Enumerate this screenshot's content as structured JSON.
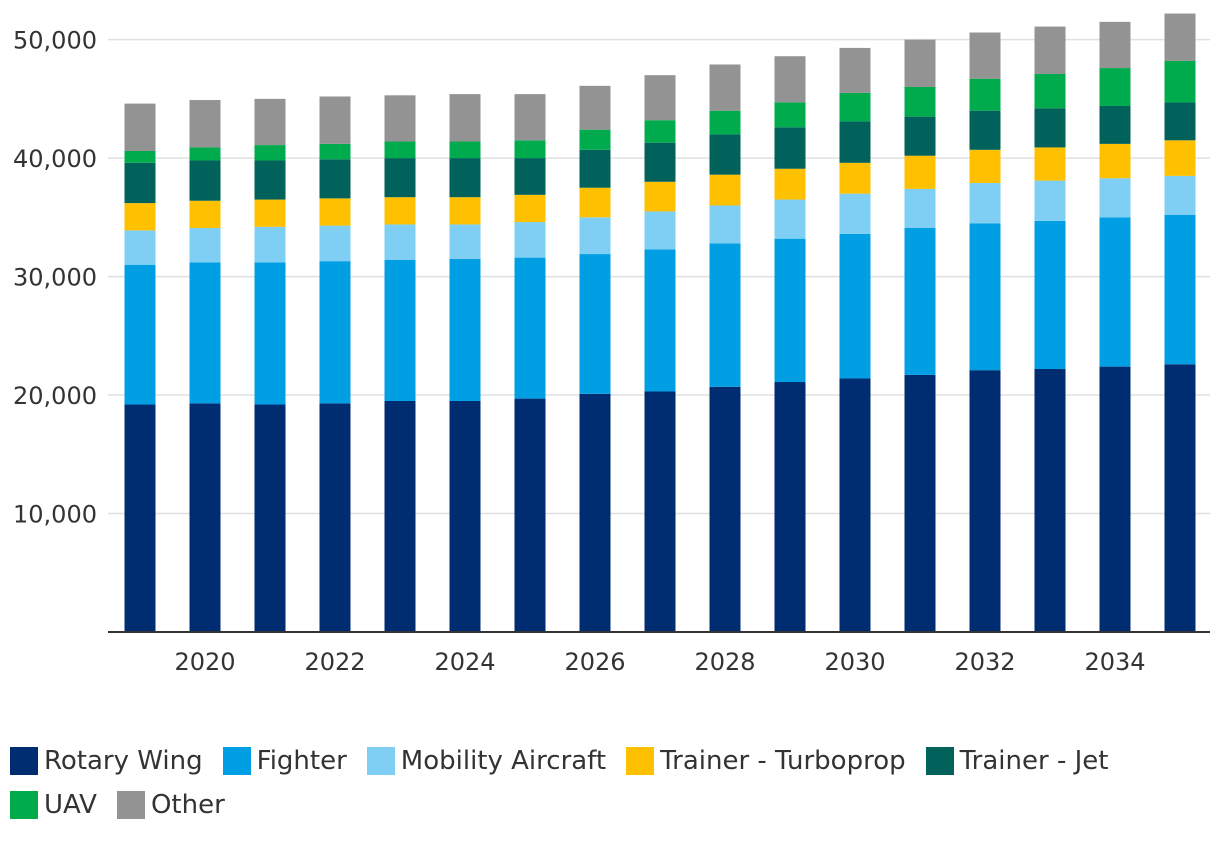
{
  "chart_data": {
    "type": "bar",
    "stacked": true,
    "title": "",
    "xlabel": "",
    "ylabel": "",
    "ylim": [
      0,
      52500
    ],
    "yticks": [
      10000,
      20000,
      30000,
      40000,
      50000
    ],
    "ytick_labels": [
      "10,000",
      "20,000",
      "30,000",
      "40,000",
      "50,000"
    ],
    "xticks": [
      2020,
      2022,
      2024,
      2026,
      2028,
      2030,
      2032,
      2034
    ],
    "xtick_labels": [
      "2020",
      "2022",
      "2024",
      "2026",
      "2028",
      "2030",
      "2032",
      "2034"
    ],
    "categories": [
      2019,
      2020,
      2021,
      2022,
      2023,
      2024,
      2025,
      2026,
      2027,
      2028,
      2029,
      2030,
      2031,
      2032,
      2033,
      2034,
      2035
    ],
    "grid": "horizontal",
    "legend_position": "bottom",
    "series": [
      {
        "name": "Rotary Wing",
        "color": "#002d72",
        "values": [
          19200,
          19300,
          19200,
          19300,
          19500,
          19500,
          19700,
          20100,
          20300,
          20700,
          21100,
          21400,
          21700,
          22100,
          22200,
          22400,
          22600
        ]
      },
      {
        "name": "Fighter",
        "color": "#009fe3",
        "values": [
          11800,
          11900,
          12000,
          12000,
          11900,
          12000,
          11900,
          11800,
          12000,
          12100,
          12100,
          12200,
          12400,
          12400,
          12500,
          12600,
          12600
        ]
      },
      {
        "name": "Mobility Aircraft",
        "color": "#7ecff3",
        "values": [
          2900,
          2900,
          3000,
          3000,
          3000,
          2900,
          3000,
          3100,
          3200,
          3200,
          3300,
          3400,
          3300,
          3400,
          3400,
          3300,
          3300
        ]
      },
      {
        "name": "Trainer - Turboprop",
        "color": "#ffc000",
        "values": [
          2300,
          2300,
          2300,
          2300,
          2300,
          2300,
          2300,
          2500,
          2500,
          2600,
          2600,
          2600,
          2800,
          2800,
          2800,
          2900,
          3000
        ]
      },
      {
        "name": "Trainer - Jet",
        "color": "#00625a",
        "values": [
          3400,
          3400,
          3300,
          3300,
          3300,
          3300,
          3100,
          3200,
          3300,
          3400,
          3500,
          3500,
          3300,
          3300,
          3300,
          3200,
          3200
        ]
      },
      {
        "name": "UAV",
        "color": "#00ab4e",
        "values": [
          1000,
          1100,
          1300,
          1300,
          1400,
          1400,
          1500,
          1700,
          1900,
          2000,
          2100,
          2400,
          2500,
          2700,
          2900,
          3200,
          3500
        ]
      },
      {
        "name": "Other",
        "color": "#939393",
        "values": [
          4000,
          4000,
          3900,
          4000,
          3900,
          4000,
          3900,
          3700,
          3800,
          3900,
          3900,
          3800,
          4000,
          3900,
          4000,
          3900,
          4000
        ]
      }
    ]
  }
}
